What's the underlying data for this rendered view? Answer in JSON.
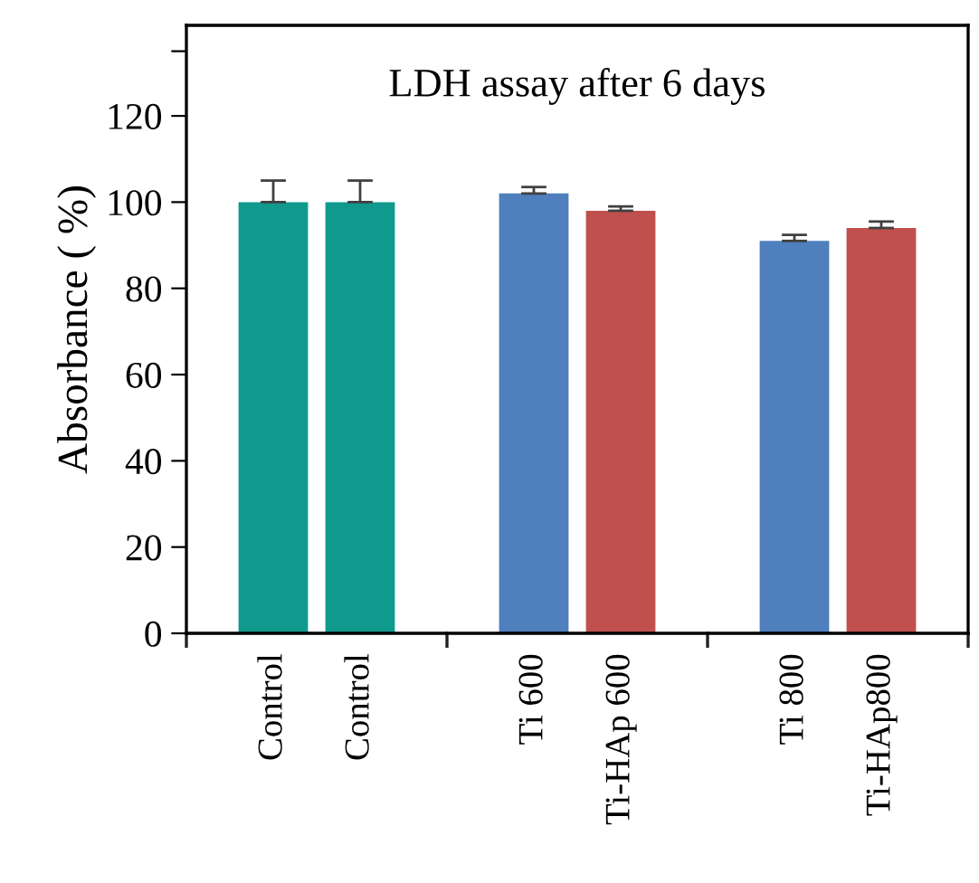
{
  "chart_data": {
    "type": "bar",
    "title": "LDH assay after 6 days",
    "ylabel": "Absorbance ( %)",
    "categories": [
      "Control",
      "Control",
      null,
      "Ti 600",
      "Ti-HAp 600",
      null,
      "Ti 800",
      "Ti-HAp800"
    ],
    "values": [
      100,
      100,
      null,
      102,
      98,
      null,
      91,
      94
    ],
    "colors": [
      "#109a8e",
      "#109a8e",
      null,
      "#4f7fbd",
      "#c0504d",
      null,
      "#4f7fbd",
      "#c0504d"
    ],
    "errors": [
      [
        100,
        105
      ],
      [
        100,
        105
      ],
      null,
      [
        102,
        103.5
      ],
      [
        98,
        99
      ],
      null,
      [
        91,
        92.4
      ],
      [
        94,
        95.5
      ]
    ],
    "ylim": [
      0,
      141
    ],
    "yticks": [
      0,
      20,
      40,
      60,
      80,
      100,
      120,
      {
        "value": 135,
        "label": null
      }
    ],
    "grid": false,
    "legend": false
  }
}
